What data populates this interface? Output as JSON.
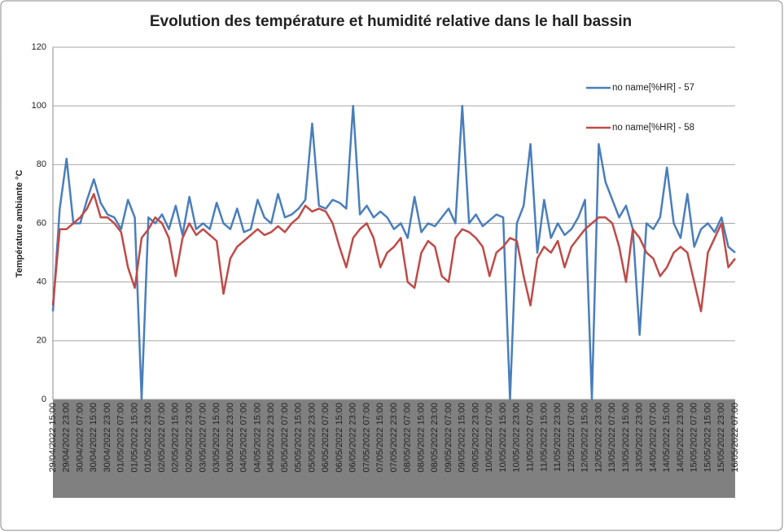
{
  "chart_data": {
    "type": "line",
    "title": "Evolution des température et humidité relative dans le hall bassin",
    "y_label": "Température ambiante °C",
    "categories": [
      "29/04/2022 15:00",
      null,
      "29/04/2022 23:00",
      null,
      "30/04/2022 07:00",
      null,
      "30/04/2022 15:00",
      null,
      "30/04/2022 23:00",
      null,
      "01/05/2022 07:00",
      null,
      "01/05/2022 15:00",
      null,
      "01/05/2022 23:00",
      null,
      "02/05/2022 07:00",
      null,
      "02/05/2022 15:00",
      null,
      "02/05/2022 23:00",
      null,
      "03/05/2022 07:00",
      null,
      "03/05/2022 15:00",
      null,
      "03/05/2022 23:00",
      null,
      "04/05/2022 07:00",
      null,
      "04/05/2022 15:00",
      null,
      "04/05/2022 23:00",
      null,
      "05/05/2022 07:00",
      null,
      "05/05/2022 15:00",
      null,
      "05/05/2022 23:00",
      null,
      "06/05/2022 07:00",
      null,
      "06/05/2022 15:00",
      null,
      "06/05/2022 23:00",
      null,
      "07/05/2022 07:00",
      null,
      "07/05/2022 15:00",
      null,
      "07/05/2022 23:00",
      null,
      "08/05/2022 07:00",
      null,
      "08/05/2022 15:00",
      null,
      "08/05/2022 23:00",
      null,
      "09/05/2022 07:00",
      null,
      "09/05/2022 15:00",
      null,
      "09/05/2022 23:00",
      null,
      "10/05/2022 07:00",
      null,
      "10/05/2022 15:00",
      null,
      "10/05/2022 23:00",
      null,
      "11/05/2022 07:00",
      null,
      "11/05/2022 15:00",
      null,
      "11/05/2022 23:00",
      null,
      "12/05/2022 07:00",
      null,
      "12/05/2022 15:00",
      null,
      "12/05/2022 23:00",
      null,
      "13/05/2022 07:00",
      null,
      "13/05/2022 15:00",
      null,
      "13/05/2022 23:00",
      null,
      "14/05/2022 07:00",
      null,
      "14/05/2022 15:00",
      null,
      "14/05/2022 23:00",
      null,
      "15/05/2022 07:00",
      null,
      "15/05/2022 15:00",
      null,
      "15/05/2022 23:00",
      null,
      "16/05/2022 07:00"
    ],
    "series": [
      {
        "name": "no name[%HR] - 57",
        "color": "#4a7ebb",
        "values": [
          30,
          65,
          82,
          60,
          60,
          68,
          75,
          67,
          63,
          62,
          58,
          68,
          62,
          0,
          62,
          60,
          63,
          58,
          66,
          56,
          69,
          58,
          60,
          58,
          67,
          60,
          58,
          65,
          57,
          58,
          68,
          62,
          60,
          70,
          62,
          63,
          65,
          68,
          94,
          66,
          65,
          68,
          67,
          65,
          100,
          63,
          66,
          62,
          64,
          62,
          58,
          60,
          55,
          69,
          57,
          60,
          59,
          62,
          65,
          60,
          100,
          60,
          63,
          59,
          61,
          63,
          62,
          0,
          60,
          66,
          87,
          50,
          68,
          55,
          60,
          56,
          58,
          62,
          68,
          0,
          87,
          74,
          68,
          62,
          66,
          58,
          22,
          60,
          58,
          62,
          79,
          60,
          55,
          70,
          52,
          58,
          60,
          57,
          62,
          52,
          50
        ]
      },
      {
        "name": "no name[%HR] - 58",
        "color": "#be4b48",
        "values": [
          32,
          58,
          58,
          60,
          62,
          65,
          70,
          62,
          62,
          60,
          57,
          45,
          38,
          55,
          58,
          62,
          60,
          55,
          42,
          55,
          60,
          56,
          58,
          56,
          54,
          36,
          48,
          52,
          54,
          56,
          58,
          56,
          57,
          59,
          57,
          60,
          62,
          66,
          64,
          65,
          64,
          60,
          52,
          45,
          55,
          58,
          60,
          55,
          45,
          50,
          52,
          55,
          40,
          38,
          50,
          54,
          52,
          42,
          40,
          55,
          58,
          57,
          55,
          52,
          42,
          50,
          52,
          55,
          54,
          42,
          32,
          48,
          52,
          50,
          54,
          45,
          52,
          55,
          58,
          60,
          62,
          62,
          60,
          52,
          40,
          58,
          55,
          50,
          48,
          42,
          45,
          50,
          52,
          50,
          40,
          30,
          50,
          55,
          60,
          45,
          48
        ]
      }
    ],
    "ylim": [
      0,
      120
    ],
    "yticks": [
      0,
      20,
      40,
      60,
      80,
      100,
      120
    ],
    "grid": true,
    "legend": "top-right"
  }
}
